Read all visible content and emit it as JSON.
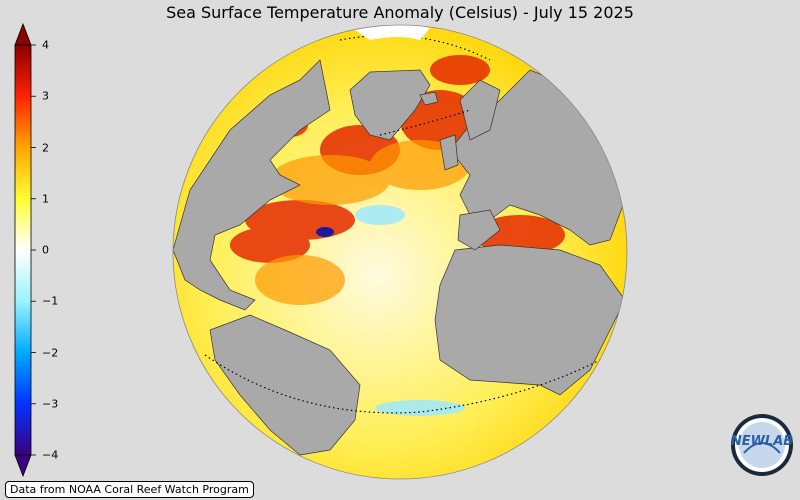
{
  "title": "Sea Surface Temperature Anomaly (Celsius) - July 15 2025",
  "colorbar": {
    "min": -4,
    "max": 4,
    "ticks": [
      {
        "value": 4,
        "label": "4"
      },
      {
        "value": 3,
        "label": "3"
      },
      {
        "value": 2,
        "label": "2"
      },
      {
        "value": 1,
        "label": "1"
      },
      {
        "value": 0,
        "label": "0"
      },
      {
        "value": -1,
        "label": "−1"
      },
      {
        "value": -2,
        "label": "−2"
      },
      {
        "value": -3,
        "label": "−3"
      },
      {
        "value": -4,
        "label": "−4"
      }
    ],
    "colors": [
      "#3d0080",
      "#0033ff",
      "#00aaff",
      "#99f3ff",
      "#ffffff",
      "#ffff33",
      "#ffa500",
      "#ff2200",
      "#8b0000"
    ]
  },
  "map": {
    "projection": "orthographic",
    "land_color": "#a9a9a9",
    "ocean_warm_color": "#ffeb3b",
    "hot_color": "#e52b00",
    "cool_color": "#9de9ff"
  },
  "source_label": "Data from NOAA Coral Reef Watch Program",
  "logo": {
    "text": "NEWLAB"
  }
}
